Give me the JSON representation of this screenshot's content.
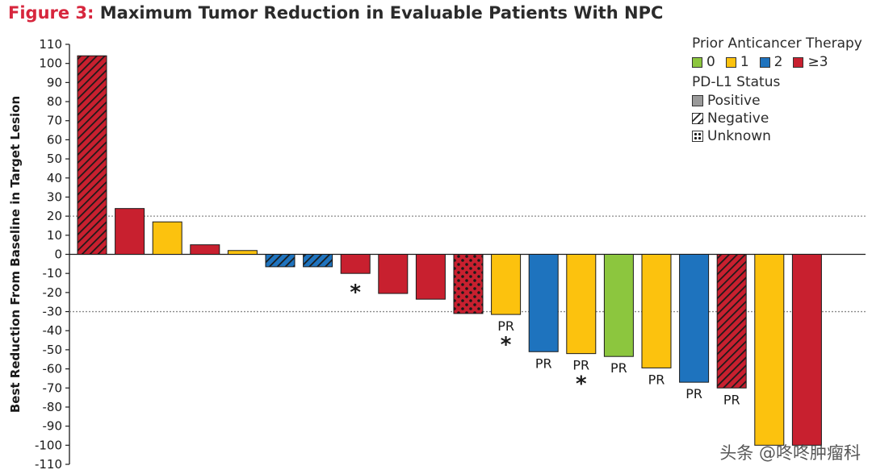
{
  "title": {
    "figure_number": "Figure 3:",
    "text": "Maximum Tumor Reduction in Evaluable Patients With NPC"
  },
  "colors": {
    "therapy_0": "#8cc63e",
    "therapy_1": "#fcc20e",
    "therapy_2": "#1e73be",
    "therapy_3plus": "#c8202f"
  },
  "legend": {
    "therapy_title": "Prior Anticancer Therapy",
    "therapy_items": [
      {
        "label": "0",
        "color": "#8cc63e"
      },
      {
        "label": "1",
        "color": "#fcc20e"
      },
      {
        "label": "2",
        "color": "#1e73be"
      },
      {
        "label": "≥3",
        "color": "#c8202f"
      }
    ],
    "pdl1_title": "PD-L1 Status",
    "pdl1_items": [
      {
        "label": "Positive",
        "pattern": "solid"
      },
      {
        "label": "Negative",
        "pattern": "hatched"
      },
      {
        "label": "Unknown",
        "pattern": "dotted"
      }
    ]
  },
  "watermark": "头条 @咚咚肿瘤科",
  "chart_data": {
    "type": "bar",
    "title": "Maximum Tumor Reduction in Evaluable Patients With NPC",
    "xlabel": "",
    "ylabel": "Best Reduction From Baseline in Target Lesion",
    "ylim": [
      -110,
      110
    ],
    "yticks": [
      110,
      100,
      90,
      80,
      70,
      60,
      50,
      40,
      30,
      20,
      10,
      0,
      -10,
      -20,
      -30,
      -40,
      -50,
      -60,
      -70,
      -80,
      -90,
      -100,
      -110
    ],
    "reference_lines": [
      20,
      -30
    ],
    "grid": false,
    "legend_position": "top-right",
    "bars": [
      {
        "value": 104,
        "therapy": "≥3",
        "pdl1": "Negative",
        "label": "",
        "star": false
      },
      {
        "value": 24,
        "therapy": "≥3",
        "pdl1": "Positive",
        "label": "",
        "star": false
      },
      {
        "value": 17,
        "therapy": "1",
        "pdl1": "Positive",
        "label": "",
        "star": false
      },
      {
        "value": 5,
        "therapy": "≥3",
        "pdl1": "Positive",
        "label": "",
        "star": false
      },
      {
        "value": 2,
        "therapy": "1",
        "pdl1": "Positive",
        "label": "",
        "star": false
      },
      {
        "value": -6.5,
        "therapy": "2",
        "pdl1": "Negative",
        "label": "",
        "star": false
      },
      {
        "value": -6.5,
        "therapy": "2",
        "pdl1": "Negative",
        "label": "",
        "star": false
      },
      {
        "value": -10,
        "therapy": "≥3",
        "pdl1": "Positive",
        "label": "",
        "star": true
      },
      {
        "value": -20.5,
        "therapy": "≥3",
        "pdl1": "Positive",
        "label": "",
        "star": false
      },
      {
        "value": -23.5,
        "therapy": "≥3",
        "pdl1": "Positive",
        "label": "",
        "star": false
      },
      {
        "value": -31,
        "therapy": "≥3",
        "pdl1": "Unknown",
        "label": "",
        "star": false
      },
      {
        "value": -31.5,
        "therapy": "1",
        "pdl1": "Positive",
        "label": "PR",
        "star": true
      },
      {
        "value": -51,
        "therapy": "2",
        "pdl1": "Positive",
        "label": "PR",
        "star": false
      },
      {
        "value": -52,
        "therapy": "1",
        "pdl1": "Positive",
        "label": "PR",
        "star": true
      },
      {
        "value": -53.5,
        "therapy": "0",
        "pdl1": "Positive",
        "label": "PR",
        "star": false
      },
      {
        "value": -59.5,
        "therapy": "1",
        "pdl1": "Positive",
        "label": "PR",
        "star": false
      },
      {
        "value": -67,
        "therapy": "2",
        "pdl1": "Positive",
        "label": "PR",
        "star": false
      },
      {
        "value": -70,
        "therapy": "≥3",
        "pdl1": "Negative",
        "label": "PR",
        "star": false
      },
      {
        "value": -100,
        "therapy": "1",
        "pdl1": "Positive",
        "label": "",
        "star": false
      },
      {
        "value": -100,
        "therapy": "≥3",
        "pdl1": "Positive",
        "label": "",
        "star": false
      }
    ],
    "star_symbol": "*"
  }
}
